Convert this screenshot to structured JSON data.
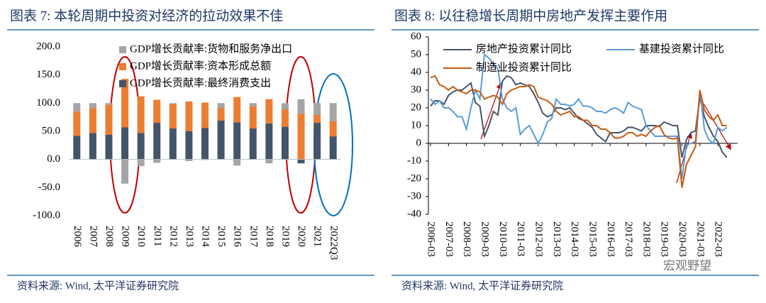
{
  "chart_data": [
    {
      "type": "stacked_bar",
      "title": "图表 7:  本轮周期中投资对经济的拉动效果不佳",
      "source": "资料来源:  Wind,  太平洋证券研究院",
      "categories": [
        "2006",
        "2007",
        "2008",
        "2009",
        "2010",
        "2011",
        "2012",
        "2013",
        "2014",
        "2015",
        "2016",
        "2017",
        "2018",
        "2019",
        "2020",
        "2021",
        "2022Q3"
      ],
      "series": [
        {
          "name": "GDP增长贡献率:最终消费支出",
          "color": "#44546a",
          "values": [
            42,
            47,
            44,
            57,
            47,
            65,
            55,
            50,
            56,
            69,
            66,
            55,
            64,
            58,
            -7,
            65,
            41
          ]
        },
        {
          "name": "GDP增长贡献率:资本形成总额",
          "color": "#ed7d31",
          "values": [
            43,
            44,
            53,
            86,
            65,
            41,
            43,
            53,
            45,
            22,
            45,
            39,
            43,
            31,
            81,
            14,
            27
          ]
        },
        {
          "name": "GDP增长贡献率:货物和服务净出口",
          "color": "#a5a5a5",
          "values": [
            15,
            9,
            3,
            -43,
            -12,
            -6,
            2,
            -3,
            -1,
            9,
            -11,
            6,
            -7,
            11,
            26,
            21,
            32
          ]
        }
      ],
      "ylim": [
        -100,
        200
      ],
      "yticks": [
        {
          "value": -100,
          "label": "-100.0"
        },
        {
          "value": -50,
          "label": "-50.0"
        },
        {
          "value": 0,
          "label": "0.0"
        },
        {
          "value": 50,
          "label": "50.0"
        },
        {
          "value": 100,
          "label": "100.0"
        },
        {
          "value": 150,
          "label": "150.0"
        },
        {
          "value": 200,
          "label": "200.0"
        }
      ]
    },
    {
      "type": "line",
      "title": "图表 8:  以往稳增长周期中房地产发挥主要作用",
      "source": "资料来源:  Wind,  太平洋证券研究院",
      "categories": [
        "2006-03",
        null,
        null,
        null,
        "2007-03",
        null,
        null,
        null,
        "2008-03",
        null,
        null,
        null,
        "2009-03",
        null,
        null,
        null,
        "2010-03",
        null,
        null,
        null,
        "2011-03",
        null,
        null,
        null,
        "2012-03",
        null,
        null,
        null,
        "2013-03",
        null,
        null,
        null,
        "2014-03",
        null,
        null,
        null,
        "2015-03",
        null,
        null,
        null,
        "2016-03",
        null,
        null,
        null,
        "2017-03",
        null,
        null,
        null,
        "2018-03",
        null,
        null,
        null,
        "2019-03",
        null,
        null,
        null,
        "2020-03",
        null,
        null,
        null,
        "2021-03",
        null,
        null,
        null,
        "2022-03",
        null,
        null
      ],
      "series": [
        {
          "name": "房地产投资累计同比",
          "color": "#44546a",
          "values": [
            21,
            24,
            24,
            22,
            27,
            29,
            30,
            30,
            32,
            34,
            23,
            21,
            4,
            10,
            18,
            16,
            35,
            38,
            37,
            33,
            34,
            33,
            32,
            28,
            23,
            17,
            15,
            16,
            20,
            20,
            19,
            20,
            17,
            14,
            13,
            11,
            9,
            5,
            3,
            1,
            6,
            6,
            6,
            7,
            9,
            9,
            8,
            7,
            10,
            10,
            10,
            9.5,
            12,
            11,
            10,
            10,
            -8,
            2,
            6,
            7,
            26,
            15,
            9,
            4,
            1,
            -5,
            -8
          ]
        },
        {
          "name": "基建投资累计同比",
          "color": "#5b9bd5",
          "values": [
            25,
            22,
            24,
            20,
            20,
            18,
            15,
            15,
            8,
            20,
            30,
            25,
            50,
            48,
            45,
            42,
            25,
            20,
            18,
            20,
            5,
            8,
            10,
            5,
            0,
            5,
            12,
            14,
            25,
            22,
            22,
            21,
            22,
            25,
            21,
            21,
            20,
            18,
            18,
            17,
            19,
            20,
            19,
            17,
            23,
            21,
            20,
            19,
            10,
            7,
            4,
            4,
            4,
            4,
            4,
            4,
            -20,
            -1,
            0,
            1,
            30,
            8,
            2,
            0,
            9,
            7,
            9
          ]
        },
        {
          "name": "制造业投资累计同比",
          "color": "#c55a11",
          "values": [
            37,
            38,
            33,
            32,
            30,
            32,
            30,
            29,
            28,
            30,
            30,
            29,
            25,
            26,
            27,
            26,
            22,
            28,
            30,
            31,
            32,
            32,
            33,
            32,
            26,
            25,
            24,
            22,
            18,
            16,
            17,
            18,
            15,
            15,
            13,
            13,
            10,
            10,
            8,
            8,
            6,
            3,
            3,
            4,
            6,
            6,
            4,
            5,
            4,
            7,
            9,
            10,
            5,
            3,
            2.5,
            3,
            -25,
            -12,
            -7,
            -2,
            30,
            19,
            15,
            13,
            16,
            10,
            10
          ]
        }
      ],
      "ylim": [
        -40,
        60
      ],
      "yticks": [
        -40,
        -30,
        -20,
        -10,
        0,
        10,
        20,
        30,
        40,
        50,
        60
      ]
    }
  ],
  "watermark": "宏观野望"
}
